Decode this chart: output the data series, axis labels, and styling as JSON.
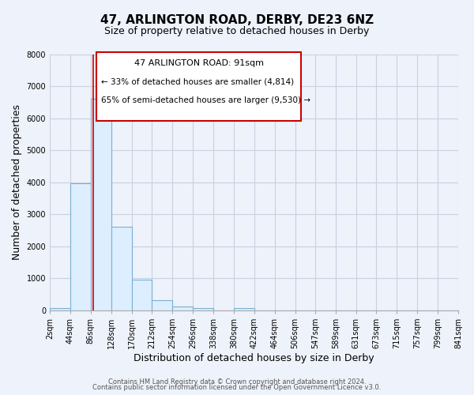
{
  "title": "47, ARLINGTON ROAD, DERBY, DE23 6NZ",
  "subtitle": "Size of property relative to detached houses in Derby",
  "xlabel": "Distribution of detached houses by size in Derby",
  "ylabel": "Number of detached properties",
  "bin_labels": [
    "2sqm",
    "44sqm",
    "86sqm",
    "128sqm",
    "170sqm",
    "212sqm",
    "254sqm",
    "296sqm",
    "338sqm",
    "380sqm",
    "422sqm",
    "464sqm",
    "506sqm",
    "547sqm",
    "589sqm",
    "631sqm",
    "673sqm",
    "715sqm",
    "757sqm",
    "799sqm",
    "841sqm"
  ],
  "bar_values": [
    60,
    3980,
    6620,
    2620,
    960,
    330,
    130,
    60,
    10,
    60,
    0,
    0,
    0,
    0,
    0,
    0,
    0,
    0,
    0,
    0
  ],
  "bar_fill_color": "#ddeeff",
  "bar_edge_color": "#7ab0d4",
  "grid_color": "#c8d0e0",
  "background_color": "#eef2fa",
  "annotation_box_edge": "#cc0000",
  "annotation_title": "47 ARLINGTON ROAD: 91sqm",
  "annotation_line1": "← 33% of detached houses are smaller (4,814)",
  "annotation_line2": "65% of semi-detached houses are larger (9,530) →",
  "property_line_x": 91,
  "ylim": [
    0,
    8000
  ],
  "footer1": "Contains HM Land Registry data © Crown copyright and database right 2024.",
  "footer2": "Contains public sector information licensed under the Open Government Licence v3.0.",
  "title_fontsize": 11,
  "subtitle_fontsize": 9,
  "axis_label_fontsize": 9,
  "tick_fontsize": 7,
  "annotation_title_fontsize": 8,
  "annotation_text_fontsize": 7.5,
  "bin_edges": [
    2,
    44,
    86,
    128,
    170,
    212,
    254,
    296,
    338,
    380,
    422,
    464,
    506,
    547,
    589,
    631,
    673,
    715,
    757,
    799,
    841
  ]
}
